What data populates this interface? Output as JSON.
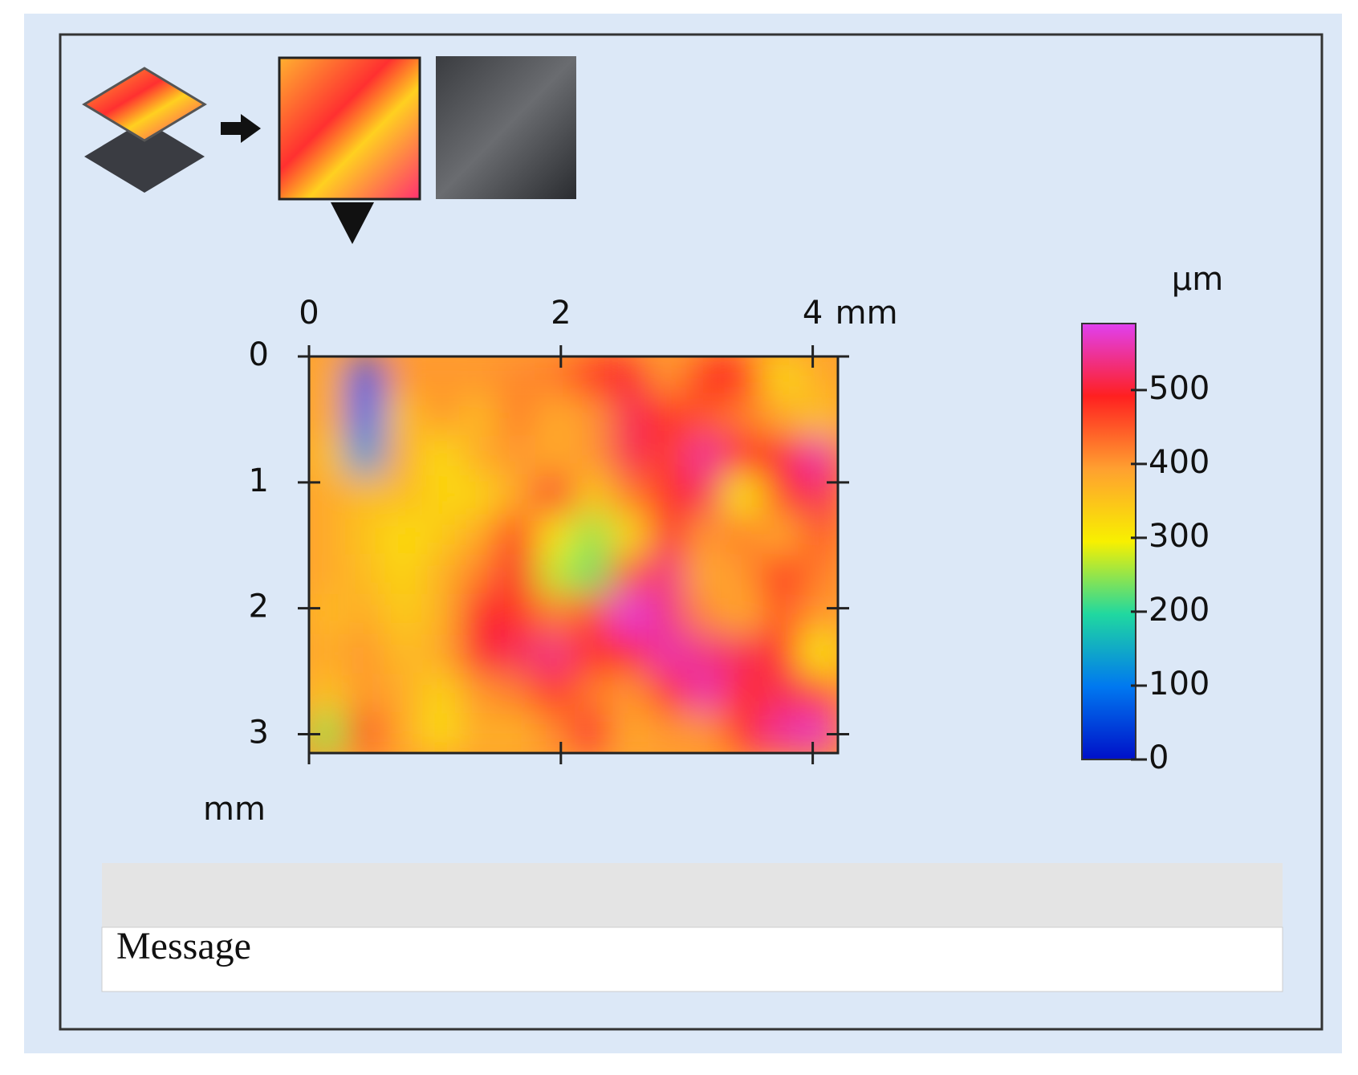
{
  "chart_data": {
    "type": "heatmap",
    "xlim": [
      0,
      4.2
    ],
    "ylim": [
      0,
      3.15
    ],
    "xticks": [
      0,
      2,
      4
    ],
    "yticks": [
      0,
      1,
      2,
      3
    ],
    "x_unit": "mm",
    "y_unit": "mm",
    "z": [
      [
        380,
        60,
        400,
        400,
        400,
        410,
        420,
        480,
        500,
        400,
        480,
        490,
        320,
        380
      ],
      [
        380,
        80,
        350,
        400,
        360,
        420,
        380,
        400,
        520,
        480,
        450,
        420,
        380,
        350
      ],
      [
        350,
        130,
        380,
        320,
        380,
        400,
        380,
        400,
        520,
        470,
        550,
        480,
        500,
        560
      ],
      [
        380,
        360,
        360,
        330,
        330,
        380,
        500,
        340,
        420,
        480,
        520,
        300,
        470,
        520
      ],
      [
        380,
        350,
        320,
        340,
        380,
        480,
        310,
        250,
        320,
        500,
        400,
        420,
        380,
        450
      ],
      [
        380,
        360,
        330,
        370,
        420,
        500,
        270,
        230,
        450,
        540,
        380,
        400,
        480,
        420
      ],
      [
        360,
        380,
        340,
        370,
        500,
        480,
        420,
        460,
        580,
        540,
        410,
        380,
        450,
        400
      ],
      [
        380,
        400,
        360,
        380,
        500,
        520,
        540,
        480,
        500,
        560,
        540,
        520,
        480,
        300
      ],
      [
        350,
        400,
        380,
        330,
        400,
        420,
        480,
        420,
        400,
        480,
        560,
        480,
        520,
        460
      ],
      [
        250,
        460,
        380,
        320,
        380,
        370,
        410,
        500,
        380,
        400,
        400,
        480,
        550,
        570
      ]
    ],
    "colorbar": {
      "unit": "µm",
      "clim": [
        0,
        590
      ],
      "ticks": [
        0,
        100,
        200,
        300,
        400,
        500
      ],
      "colors": [
        "#0010c8",
        "#0078f0",
        "#20d8a0",
        "#f8f000",
        "#ffa030",
        "#ff2020",
        "#e040f0"
      ]
    }
  },
  "message_bar": {
    "label": "Message"
  }
}
